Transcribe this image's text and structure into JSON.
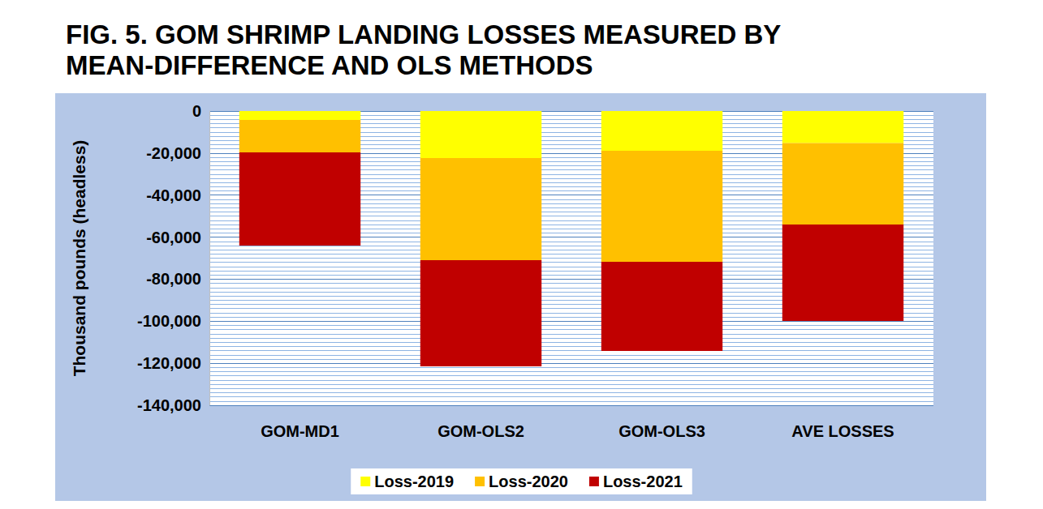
{
  "chart_data": {
    "type": "bar",
    "title": "FIG. 5. GOM SHRIMP LANDING LOSSES MEASURED BY\nMEAN-DIFFERENCE AND OLS METHODS",
    "y_label": "Thousand pounds (headless)",
    "categories": [
      "GOM-MD1",
      "GOM-OLS2",
      "GOM-OLS3",
      "AVE LOSSES"
    ],
    "series": [
      {
        "name": "Loss-2019",
        "color": "#ffff00",
        "values": [
          -4200,
          -22400,
          -18900,
          -15200
        ]
      },
      {
        "name": "Loss-2020",
        "color": "#ffc000",
        "values": [
          -15500,
          -48600,
          -52800,
          -38800
        ]
      },
      {
        "name": "Loss-2021",
        "color": "#c00000",
        "values": [
          -44300,
          -50500,
          -42500,
          -45900
        ]
      }
    ],
    "stacked": true,
    "ylim": [
      -140000,
      0
    ],
    "yticks": [
      {
        "value": -140000,
        "label": "-140,000"
      },
      {
        "value": -120000,
        "label": "-120,000"
      },
      {
        "value": -100000,
        "label": "-100,000"
      },
      {
        "value": -80000,
        "label": "-80,000"
      },
      {
        "value": -60000,
        "label": "-60,000"
      },
      {
        "value": -40000,
        "label": "-40,000"
      },
      {
        "value": -20000,
        "label": "-20,000"
      },
      0
    ],
    "grid": true,
    "legend": "bottom"
  }
}
